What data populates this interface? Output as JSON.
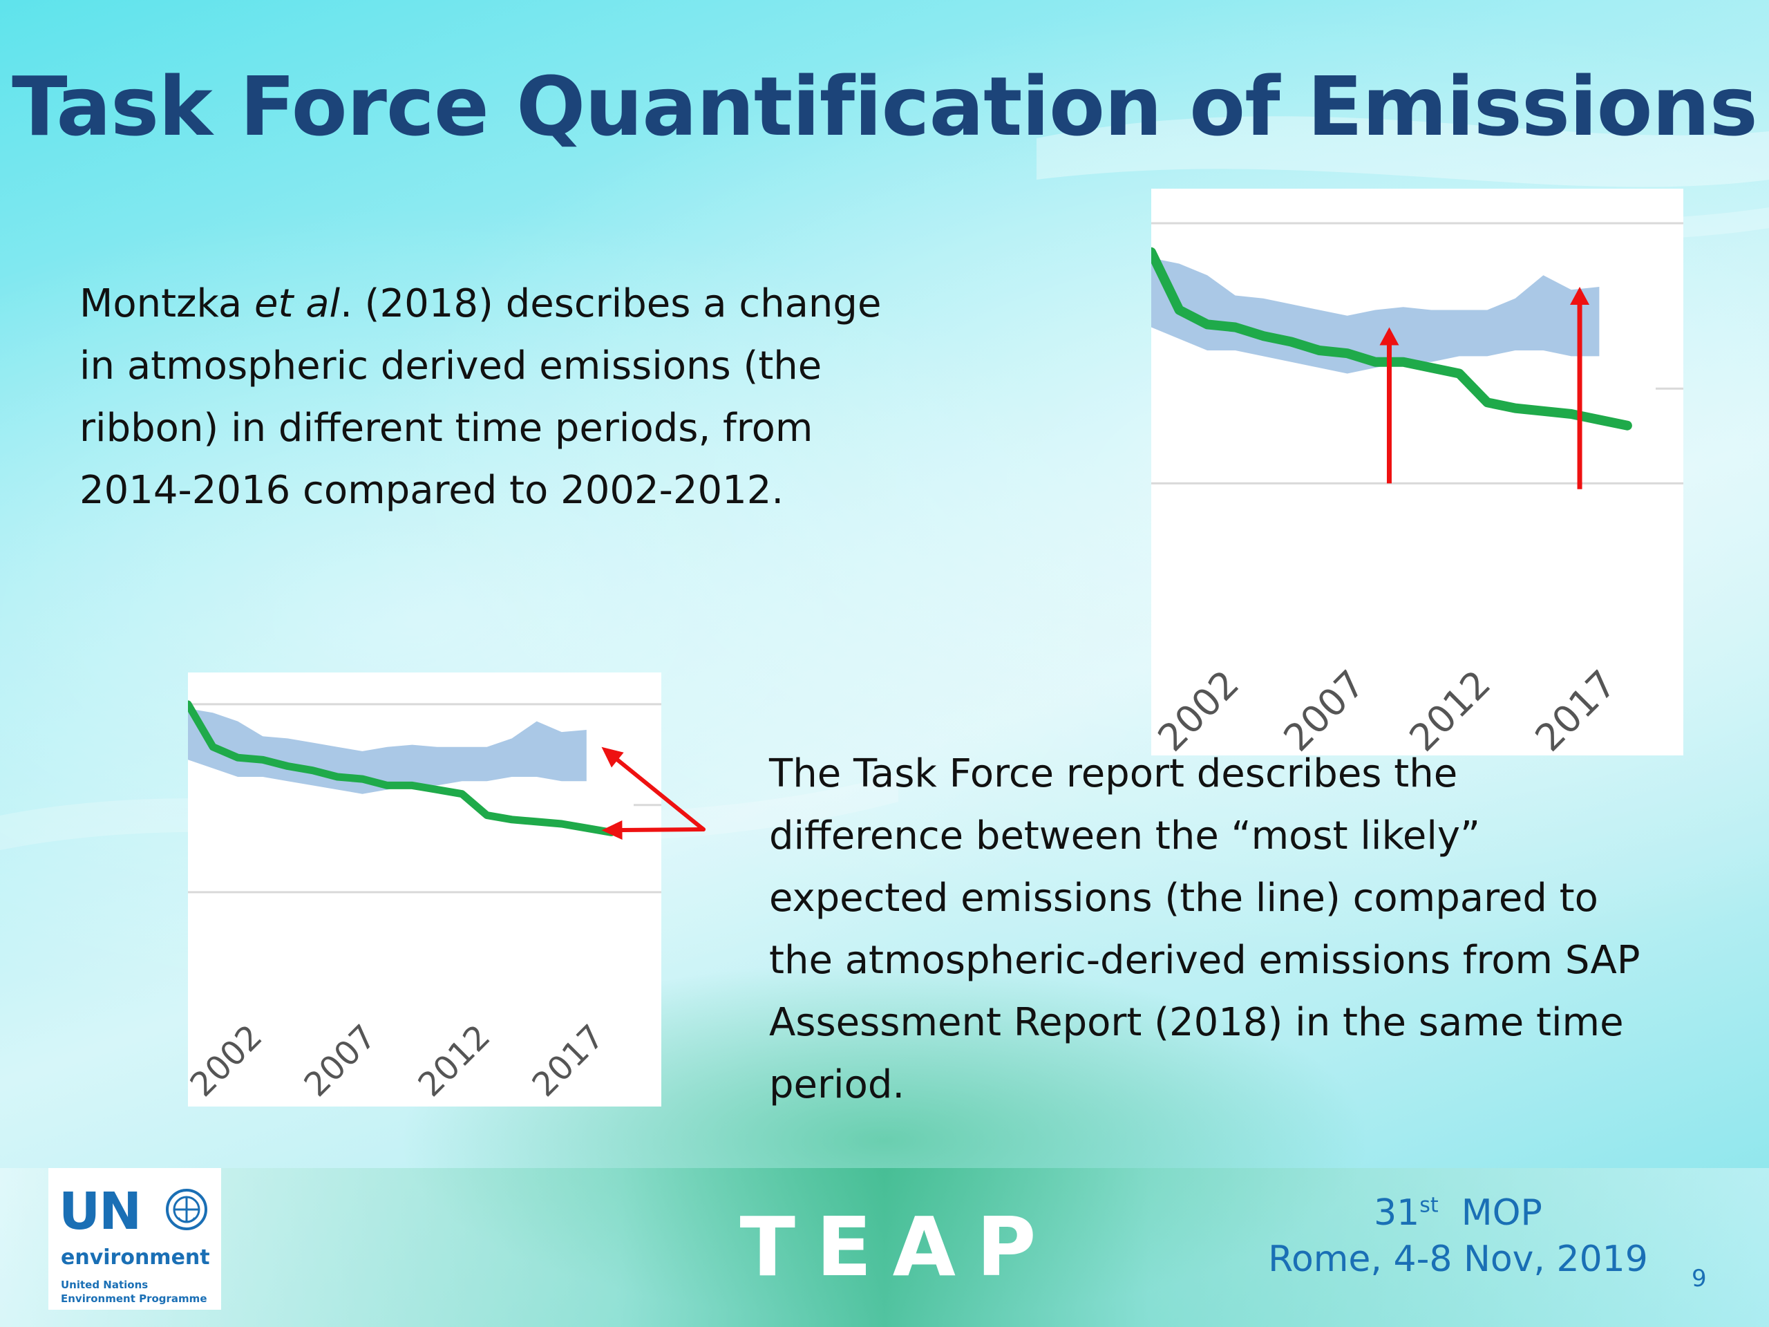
{
  "slide": {
    "title": "Task Force Quantification of Emissions",
    "paragraph1": {
      "lines": [
        [
          "Montzka ",
          "et al",
          ". (2018) describes a change"
        ],
        "in atmospheric derived emissions (the",
        "ribbon) in different time periods, from",
        "2014-2016 compared to 2002-2012."
      ]
    },
    "paragraph2": {
      "lines": [
        "The Task Force report describes the",
        "difference between the “most likely”",
        "expected emissions (the line) compared to",
        "the atmospheric-derived emissions from SAP",
        "Assessment Report (2018) in the same time",
        "period."
      ]
    },
    "footer": {
      "logo": {
        "un": "UN",
        "environment": "environment",
        "org_line1": "United Nations",
        "org_line2": "Environment Programme",
        "emblem_icon": "un-emblem-icon"
      },
      "teap": "TEAP",
      "mop_number": "31",
      "mop_ordinal": "st",
      "mop_label": "MOP",
      "location_date": "Rome, 4-8 Nov, 2019",
      "page_number": "9"
    },
    "colors": {
      "title": "#1c4479",
      "line": "#1faa4a",
      "ribbon": "#aac8e6",
      "arrow": "#ee1111",
      "footer_text": "#1a6fb5"
    }
  },
  "chart_data": [
    {
      "type": "line",
      "x_ticks": [
        "2002",
        "2007",
        "2012",
        "2017"
      ],
      "series": [
        {
          "kind": "line",
          "x": [
            2000,
            2001,
            2002,
            2003,
            2004,
            2005,
            2006,
            2007,
            2008,
            2009,
            2010,
            2011,
            2012,
            2013,
            2014,
            2015,
            2016,
            2017
          ],
          "y": [
            100,
            80,
            75,
            74,
            71,
            69,
            66,
            65,
            62,
            62,
            60,
            58,
            48,
            46,
            45,
            44,
            42,
            40
          ]
        },
        {
          "kind": "ribbon",
          "x": [
            2000,
            2001,
            2002,
            2003,
            2004,
            2005,
            2006,
            2007,
            2008,
            2009,
            2010,
            2011,
            2012,
            2013,
            2014,
            2015,
            2016
          ],
          "upper": [
            98,
            96,
            92,
            85,
            84,
            82,
            80,
            78,
            80,
            81,
            80,
            80,
            80,
            84,
            92,
            87,
            88
          ],
          "lower": [
            74,
            70,
            66,
            66,
            64,
            62,
            60,
            58,
            60,
            62,
            62,
            64,
            64,
            66,
            66,
            64,
            64
          ]
        }
      ],
      "arrows": [
        {
          "x": 2008.5,
          "from_y": 20,
          "to_y": 74
        },
        {
          "x": 2015.3,
          "from_y": 18,
          "to_y": 88
        }
      ],
      "ylim": [
        0,
        110
      ],
      "gridlines": [
        110,
        20
      ],
      "grid": true
    },
    {
      "type": "line",
      "x_ticks": [
        "2002",
        "2007",
        "2012",
        "2017"
      ],
      "series": [
        {
          "kind": "line",
          "x": [
            2000,
            2001,
            2002,
            2003,
            2004,
            2005,
            2006,
            2007,
            2008,
            2009,
            2010,
            2011,
            2012,
            2013,
            2014,
            2015,
            2016,
            2017
          ],
          "y": [
            100,
            80,
            75,
            74,
            71,
            69,
            66,
            65,
            62,
            62,
            60,
            58,
            48,
            46,
            45,
            44,
            42,
            40
          ]
        },
        {
          "kind": "ribbon",
          "x": [
            2000,
            2001,
            2002,
            2003,
            2004,
            2005,
            2006,
            2007,
            2008,
            2009,
            2010,
            2011,
            2012,
            2013,
            2014,
            2015,
            2016
          ],
          "upper": [
            98,
            96,
            92,
            85,
            84,
            82,
            80,
            78,
            80,
            81,
            80,
            80,
            80,
            84,
            92,
            87,
            88
          ],
          "lower": [
            74,
            70,
            66,
            66,
            64,
            62,
            60,
            58,
            60,
            62,
            62,
            64,
            64,
            66,
            66,
            64,
            64
          ]
        }
      ],
      "callout": {
        "targets": [
          {
            "x": 2016.6,
            "y": 80
          },
          {
            "x": 2016.6,
            "y": 41
          }
        ]
      },
      "ylim": [
        0,
        110
      ],
      "gridlines": [
        100,
        12
      ],
      "grid": true
    }
  ]
}
